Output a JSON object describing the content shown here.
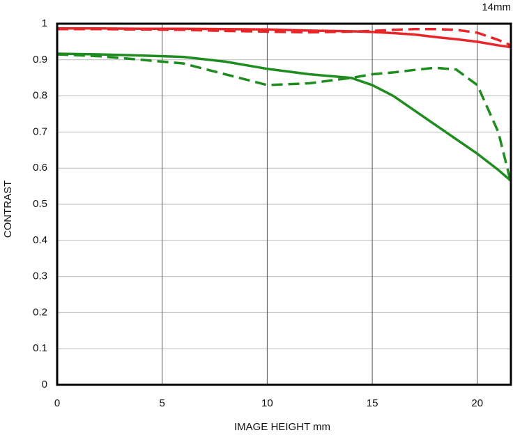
{
  "chart_data": {
    "type": "line",
    "title": "14mm",
    "xlabel": "IMAGE HEIGHT   mm",
    "ylabel": "CONTRAST",
    "x": [
      0,
      2,
      4,
      6,
      8,
      10,
      12,
      14,
      15,
      16,
      17,
      18,
      19,
      20,
      21,
      21.6
    ],
    "series": [
      {
        "color": "#e8262a",
        "dashed": false,
        "values": [
          0.987,
          0.987,
          0.986,
          0.986,
          0.985,
          0.984,
          0.981,
          0.979,
          0.977,
          0.974,
          0.97,
          0.963,
          0.957,
          0.95,
          0.94,
          0.935
        ]
      },
      {
        "color": "#e8262a",
        "dashed": true,
        "values": [
          0.985,
          0.985,
          0.984,
          0.983,
          0.98,
          0.978,
          0.976,
          0.978,
          0.98,
          0.983,
          0.985,
          0.985,
          0.983,
          0.975,
          0.955,
          0.94
        ]
      },
      {
        "color": "#1e8c1e",
        "dashed": false,
        "values": [
          0.917,
          0.915,
          0.912,
          0.908,
          0.895,
          0.875,
          0.86,
          0.85,
          0.83,
          0.8,
          0.76,
          0.72,
          0.68,
          0.64,
          0.595,
          0.565
        ]
      },
      {
        "color": "#1e8c1e",
        "dashed": true,
        "values": [
          0.915,
          0.91,
          0.9,
          0.89,
          0.86,
          0.83,
          0.835,
          0.85,
          0.86,
          0.865,
          0.872,
          0.878,
          0.873,
          0.83,
          0.7,
          0.56
        ]
      }
    ],
    "xlim": [
      0,
      21.6
    ],
    "xticks": [
      0,
      5,
      10,
      15,
      20
    ],
    "ylim": [
      0,
      1
    ],
    "yticks": [
      0,
      0.1,
      0.2,
      0.3,
      0.4,
      0.5,
      0.6,
      0.7,
      0.8,
      0.9,
      1
    ],
    "grid": true
  }
}
